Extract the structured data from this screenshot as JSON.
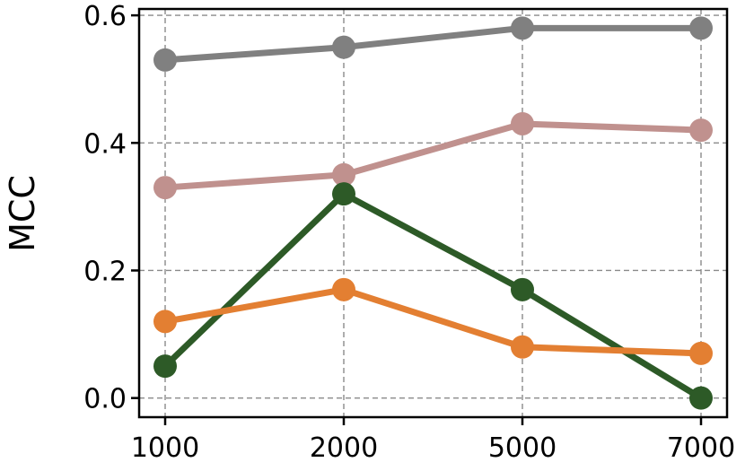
{
  "chart_data": {
    "type": "line",
    "title": "",
    "xlabel": "",
    "ylabel": "MCC",
    "categories": [
      "1000",
      "2000",
      "5000",
      "7000"
    ],
    "ylim": [
      -0.03,
      0.61
    ],
    "yticks": [
      "0.0",
      "0.2",
      "0.4",
      "0.6"
    ],
    "ytick_values": [
      0.0,
      0.2,
      0.4,
      0.6
    ],
    "grid": true,
    "legend": "none",
    "series": [
      {
        "color": "#808080",
        "values": [
          0.53,
          0.55,
          0.58,
          0.58
        ]
      },
      {
        "color": "#c0918e",
        "values": [
          0.33,
          0.35,
          0.43,
          0.42
        ]
      },
      {
        "color": "#2d5a27",
        "values": [
          0.05,
          0.32,
          0.17,
          0.0
        ]
      },
      {
        "color": "#e37f32",
        "values": [
          0.12,
          0.17,
          0.08,
          0.07
        ]
      }
    ]
  }
}
